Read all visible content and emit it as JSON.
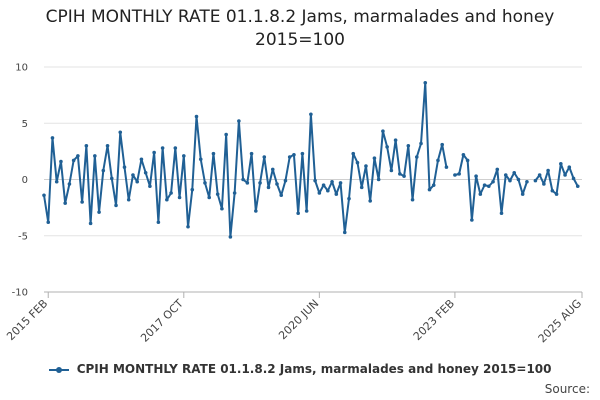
{
  "chart_data": {
    "type": "line",
    "title": "CPIH MONTHLY RATE 01.1.8.2 Jams, marmalades and honey 2015=100",
    "x_tick_labels": [
      "2015 FEB",
      "2017 OCT",
      "2020 JUN",
      "2023 FEB",
      "2025 AUG"
    ],
    "y_tick_labels": [
      "10",
      "5",
      "0",
      "-5",
      "-10"
    ],
    "ylim": [
      -10,
      10
    ],
    "yticks": [
      10,
      5,
      0,
      -5,
      -10
    ],
    "grid": "horizontal",
    "legend_position": "bottom",
    "color": "#206095",
    "x_start": "2015-01",
    "x_end": "2025-08",
    "series": [
      {
        "name": "CPIH MONTHLY RATE 01.1.8.2 Jams, marmalades and honey 2015=100",
        "values": [
          -1.4,
          -3.8,
          3.7,
          -0.2,
          1.6,
          -2.1,
          -0.4,
          1.7,
          2.1,
          -2.0,
          3.0,
          -3.9,
          2.1,
          -2.9,
          0.8,
          3.0,
          0.1,
          -2.3,
          4.2,
          1.1,
          -1.8,
          0.4,
          -0.2,
          1.8,
          0.6,
          -0.6,
          2.4,
          -3.8,
          2.8,
          -1.8,
          -1.2,
          2.8,
          -1.6,
          2.1,
          -4.2,
          -0.9,
          5.6,
          1.8,
          -0.3,
          -1.6,
          2.3,
          -1.3,
          -2.6,
          4.0,
          -5.1,
          -1.2,
          5.2,
          0.0,
          -0.3,
          2.3,
          -2.8,
          -0.3,
          2.0,
          -0.7,
          0.9,
          -0.4,
          -1.4,
          -0.1,
          2.0,
          2.2,
          -3.0,
          2.3,
          -2.8,
          5.8,
          -0.1,
          -1.2,
          -0.5,
          -1.0,
          -0.2,
          -1.3,
          -0.3,
          -4.7,
          -1.7,
          2.3,
          1.5,
          -0.7,
          1.2,
          -1.9,
          1.9,
          0.0,
          4.3,
          2.9,
          0.8,
          3.5,
          0.5,
          0.3,
          3.0,
          -1.8,
          2.0,
          3.2,
          8.6,
          -0.9,
          -0.5,
          1.7,
          3.1,
          1.1,
          null,
          0.4,
          0.5,
          2.2,
          1.7,
          -3.6,
          0.3,
          -1.3,
          -0.5,
          -0.6,
          -0.2,
          0.9,
          -3.0,
          0.4,
          -0.1,
          0.6,
          0.0,
          -1.3,
          -0.2,
          null,
          -0.1,
          0.4,
          -0.4,
          0.8,
          -1.0,
          -1.3,
          1.4,
          0.4,
          1.1,
          0.1,
          -0.6
        ]
      }
    ]
  },
  "source_label": "Source:"
}
